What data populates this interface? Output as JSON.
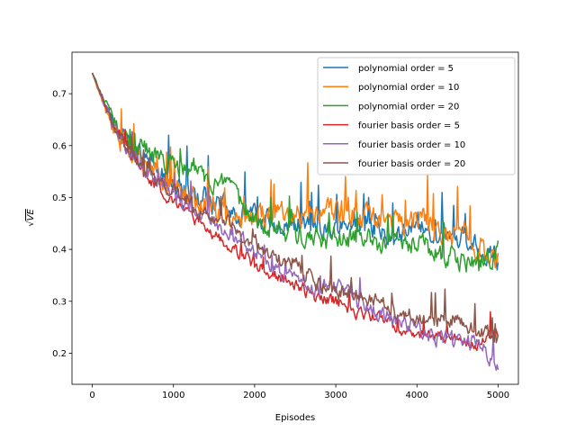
{
  "chart_data": {
    "type": "line",
    "title": "",
    "xlabel": "Episodes",
    "ylabel": "√VE",
    "ylabel_parts": {
      "root": "√",
      "inner": "VE"
    },
    "xlim": [
      -250,
      5250
    ],
    "ylim": [
      0.14,
      0.78
    ],
    "xticks": [
      0,
      1000,
      2000,
      3000,
      4000,
      5000
    ],
    "xtick_labels": [
      "0",
      "1000",
      "2000",
      "3000",
      "4000",
      "5000"
    ],
    "yticks": [
      0.2,
      0.3,
      0.4,
      0.5,
      0.6,
      0.7
    ],
    "ytick_labels": [
      "0.2",
      "0.3",
      "0.4",
      "0.5",
      "0.6",
      "0.7"
    ],
    "legend_position": "top-right",
    "x": [
      0,
      250,
      500,
      750,
      1000,
      1250,
      1500,
      1750,
      2000,
      2250,
      2500,
      2750,
      3000,
      3250,
      3500,
      3750,
      4000,
      4250,
      4500,
      4750,
      5000
    ],
    "series": [
      {
        "name": "polynomial order = 5",
        "color": "#1f77b4",
        "values": [
          0.74,
          0.65,
          0.6,
          0.56,
          0.53,
          0.5,
          0.49,
          0.47,
          0.46,
          0.45,
          0.45,
          0.44,
          0.44,
          0.44,
          0.44,
          0.43,
          0.45,
          0.43,
          0.42,
          0.41,
          0.38
        ],
        "noise": 0.035
      },
      {
        "name": "polynomial order = 10",
        "color": "#ff7f0e",
        "values": [
          0.74,
          0.63,
          0.58,
          0.55,
          0.52,
          0.5,
          0.48,
          0.46,
          0.46,
          0.47,
          0.47,
          0.47,
          0.47,
          0.47,
          0.46,
          0.46,
          0.46,
          0.44,
          0.43,
          0.41,
          0.38
        ],
        "noise": 0.04
      },
      {
        "name": "polynomial order = 20",
        "color": "#2ca02c",
        "values": [
          0.74,
          0.65,
          0.6,
          0.58,
          0.56,
          0.55,
          0.53,
          0.5,
          0.46,
          0.44,
          0.43,
          0.42,
          0.42,
          0.42,
          0.41,
          0.41,
          0.41,
          0.39,
          0.38,
          0.37,
          0.4
        ],
        "noise": 0.035
      },
      {
        "name": "fourier basis order = 5",
        "color": "#d62728",
        "values": [
          0.74,
          0.64,
          0.58,
          0.53,
          0.49,
          0.46,
          0.43,
          0.4,
          0.37,
          0.35,
          0.33,
          0.31,
          0.3,
          0.28,
          0.27,
          0.25,
          0.24,
          0.23,
          0.23,
          0.22,
          0.24
        ],
        "noise": 0.02
      },
      {
        "name": "fourier basis order = 10",
        "color": "#9467bd",
        "values": [
          0.74,
          0.64,
          0.58,
          0.54,
          0.51,
          0.48,
          0.45,
          0.43,
          0.4,
          0.37,
          0.34,
          0.32,
          0.33,
          0.3,
          0.28,
          0.26,
          0.25,
          0.23,
          0.22,
          0.22,
          0.18
        ],
        "noise": 0.025
      },
      {
        "name": "fourier basis order = 20",
        "color": "#8c564b",
        "values": [
          0.74,
          0.64,
          0.58,
          0.54,
          0.51,
          0.48,
          0.46,
          0.44,
          0.41,
          0.39,
          0.37,
          0.34,
          0.32,
          0.31,
          0.3,
          0.28,
          0.27,
          0.26,
          0.27,
          0.24,
          0.23
        ],
        "noise": 0.025
      }
    ]
  }
}
